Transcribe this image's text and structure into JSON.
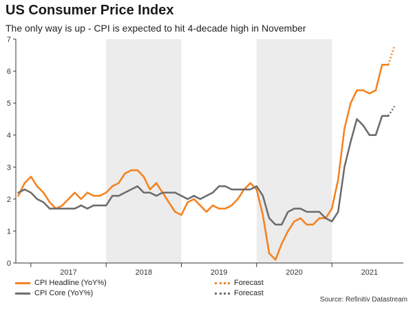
{
  "title": "US Consumer Price Index",
  "subtitle": "The only way is up - CPI is expected to hit 4-decade high in November",
  "source": "Source: Refinitiv Datastream",
  "colors": {
    "headline": "#f5821f",
    "core": "#6d6d6d",
    "shade": "#ececec",
    "axis": "#333333"
  },
  "legend": {
    "headline": "CPI Headline (YoY%)",
    "headline_forecast": "Forecast",
    "core": "CPI Core (YoY%)",
    "core_forecast": "Forecast"
  },
  "chart_data": {
    "type": "line",
    "ylim": [
      0,
      7
    ],
    "yticks": [
      0,
      1,
      2,
      3,
      4,
      5,
      6,
      7
    ],
    "x_start": 2016.8,
    "x_end": 2021.95,
    "year_labels": [
      "2017",
      "2018",
      "2019",
      "2020",
      "2021"
    ],
    "shaded_years": [
      "2018",
      "2020"
    ],
    "grid": false,
    "legend_position": "bottom",
    "series": [
      {
        "name": "CPI Headline (YoY%)",
        "style": "solid",
        "x": [
          2016.833,
          2016.917,
          2017.0,
          2017.083,
          2017.167,
          2017.25,
          2017.333,
          2017.417,
          2017.5,
          2017.583,
          2017.667,
          2017.75,
          2017.833,
          2017.917,
          2018.0,
          2018.083,
          2018.167,
          2018.25,
          2018.333,
          2018.417,
          2018.5,
          2018.583,
          2018.667,
          2018.75,
          2018.833,
          2018.917,
          2019.0,
          2019.083,
          2019.167,
          2019.25,
          2019.333,
          2019.417,
          2019.5,
          2019.583,
          2019.667,
          2019.75,
          2019.833,
          2019.917,
          2020.0,
          2020.083,
          2020.167,
          2020.25,
          2020.333,
          2020.417,
          2020.5,
          2020.583,
          2020.667,
          2020.75,
          2020.833,
          2020.917,
          2021.0,
          2021.083,
          2021.167,
          2021.25,
          2021.333,
          2021.417,
          2021.5,
          2021.583,
          2021.667,
          2021.75
        ],
        "values": [
          2.1,
          2.5,
          2.7,
          2.4,
          2.2,
          1.9,
          1.7,
          1.8,
          2.0,
          2.2,
          2.0,
          2.2,
          2.1,
          2.1,
          2.2,
          2.4,
          2.5,
          2.8,
          2.9,
          2.9,
          2.7,
          2.3,
          2.5,
          2.2,
          1.9,
          1.6,
          1.5,
          1.9,
          2.0,
          1.8,
          1.6,
          1.8,
          1.7,
          1.7,
          1.8,
          2.0,
          2.3,
          2.5,
          2.3,
          1.5,
          0.3,
          0.1,
          0.6,
          1.0,
          1.3,
          1.4,
          1.2,
          1.2,
          1.4,
          1.4,
          1.7,
          2.6,
          4.2,
          5.0,
          5.4,
          5.4,
          5.3,
          5.4,
          6.2,
          6.2
        ]
      },
      {
        "name": "Forecast",
        "style": "dotted",
        "x": [
          2021.75,
          2021.833
        ],
        "values": [
          6.2,
          6.8
        ]
      },
      {
        "name": "CPI Core (YoY%)",
        "style": "solid",
        "x": [
          2016.833,
          2016.917,
          2017.0,
          2017.083,
          2017.167,
          2017.25,
          2017.333,
          2017.417,
          2017.5,
          2017.583,
          2017.667,
          2017.75,
          2017.833,
          2017.917,
          2018.0,
          2018.083,
          2018.167,
          2018.25,
          2018.333,
          2018.417,
          2018.5,
          2018.583,
          2018.667,
          2018.75,
          2018.833,
          2018.917,
          2019.0,
          2019.083,
          2019.167,
          2019.25,
          2019.333,
          2019.417,
          2019.5,
          2019.583,
          2019.667,
          2019.75,
          2019.833,
          2019.917,
          2020.0,
          2020.083,
          2020.167,
          2020.25,
          2020.333,
          2020.417,
          2020.5,
          2020.583,
          2020.667,
          2020.75,
          2020.833,
          2020.917,
          2021.0,
          2021.083,
          2021.167,
          2021.25,
          2021.333,
          2021.417,
          2021.5,
          2021.583,
          2021.667,
          2021.75
        ],
        "values": [
          2.2,
          2.3,
          2.2,
          2.0,
          1.9,
          1.7,
          1.7,
          1.7,
          1.7,
          1.7,
          1.8,
          1.7,
          1.8,
          1.8,
          1.8,
          2.1,
          2.1,
          2.2,
          2.3,
          2.4,
          2.2,
          2.2,
          2.1,
          2.2,
          2.2,
          2.2,
          2.1,
          2.0,
          2.1,
          2.0,
          2.1,
          2.2,
          2.4,
          2.4,
          2.3,
          2.3,
          2.3,
          2.3,
          2.4,
          2.1,
          1.4,
          1.2,
          1.2,
          1.6,
          1.7,
          1.7,
          1.6,
          1.6,
          1.6,
          1.4,
          1.3,
          1.6,
          3.0,
          3.8,
          4.5,
          4.3,
          4.0,
          4.0,
          4.6,
          4.6
        ]
      },
      {
        "name": "Forecast",
        "style": "dotted",
        "x": [
          2021.75,
          2021.833
        ],
        "values": [
          4.6,
          4.9
        ]
      }
    ]
  }
}
